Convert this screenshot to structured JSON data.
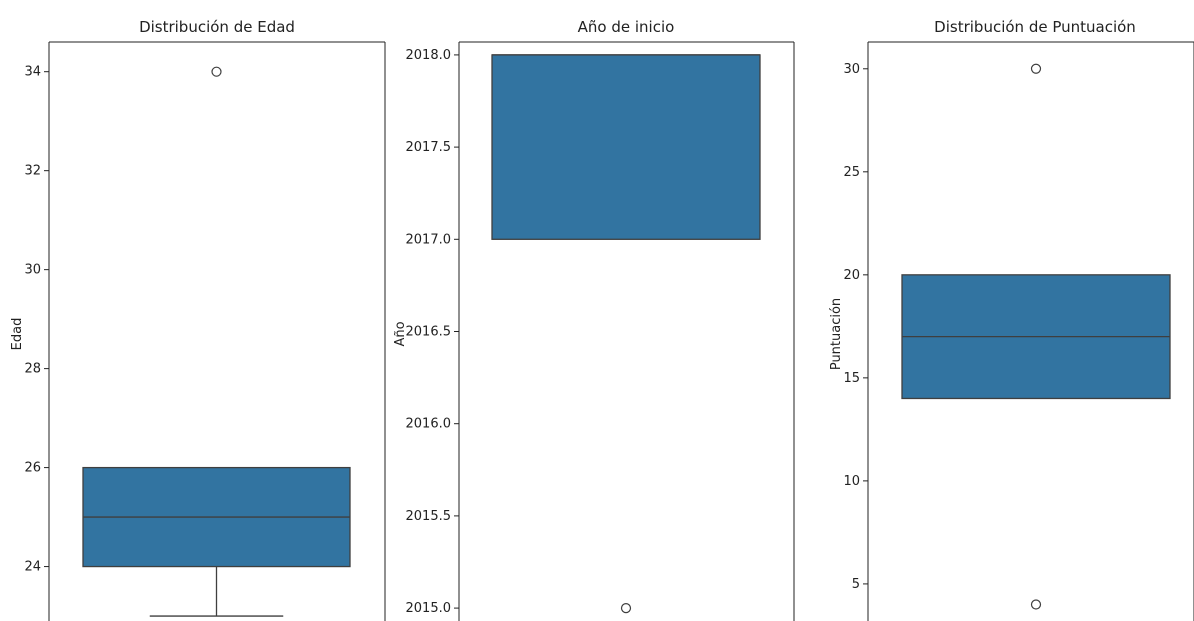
{
  "colors": {
    "box_fill": "#3274a1",
    "box_edge": "#3f3f3f",
    "axis": "#222222",
    "outlier_edge": "#3f3f3f"
  },
  "chart_data": [
    {
      "type": "box",
      "title": "Distribución de Edad",
      "ylabel": "Edad",
      "ylim": [
        22.9,
        34.6
      ],
      "yticks": [
        24,
        26,
        28,
        30,
        32,
        34
      ],
      "ytick_labels": [
        "24",
        "26",
        "28",
        "30",
        "32",
        "34"
      ],
      "box": {
        "whisker_low": 23,
        "q1": 24,
        "median": 25,
        "q3": 26,
        "whisker_high": 26
      },
      "outliers": [
        34
      ]
    },
    {
      "type": "box",
      "title": "Año de inicio",
      "ylabel": "Año",
      "ylim": [
        2014.93,
        2018.07
      ],
      "yticks": [
        2015.0,
        2015.5,
        2016.0,
        2016.5,
        2017.0,
        2017.5,
        2018.0
      ],
      "ytick_labels": [
        "2015.0",
        "2015.5",
        "2016.0",
        "2016.5",
        "2017.0",
        "2017.5",
        "2018.0"
      ],
      "box": {
        "whisker_low": 2017,
        "q1": 2017,
        "median": 2018,
        "q3": 2018,
        "whisker_high": 2018
      },
      "outliers": [
        2015
      ]
    },
    {
      "type": "box",
      "title": "Distribución de Puntuación",
      "ylabel": "Puntuación",
      "ylim": [
        3.2,
        31.3
      ],
      "yticks": [
        5,
        10,
        15,
        20,
        25,
        30
      ],
      "ytick_labels": [
        "5",
        "10",
        "15",
        "20",
        "25",
        "30"
      ],
      "box": {
        "whisker_low": 14,
        "q1": 14,
        "median": 17,
        "q3": 20,
        "whisker_high": 20
      },
      "outliers": [
        30,
        4
      ]
    }
  ]
}
